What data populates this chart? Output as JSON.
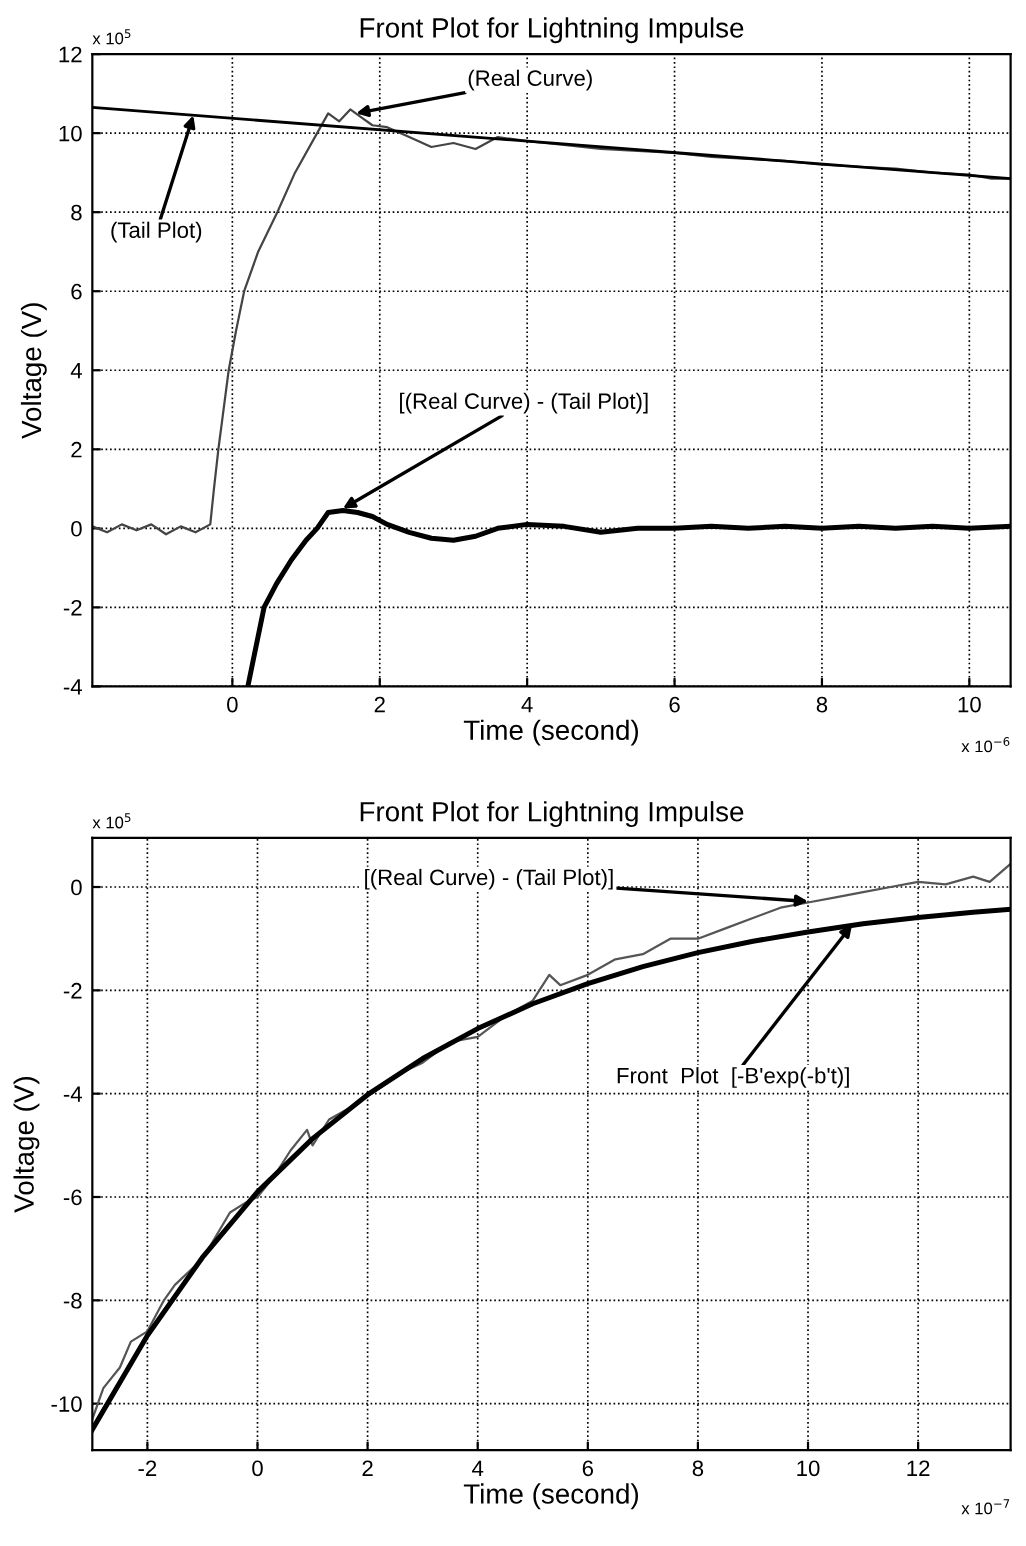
{
  "chart_data": [
    {
      "type": "line",
      "title": "Front Plot for Lightning Impulse",
      "xlabel": "Time (second)",
      "ylabel": "Voltage (V)",
      "xlim": [
        -1.9,
        10.56
      ],
      "ylim": [
        -4,
        12
      ],
      "xticks": [
        0,
        2,
        4,
        6,
        8,
        10
      ],
      "yticks": [
        -4,
        -2,
        0,
        2,
        4,
        6,
        8,
        10,
        12
      ],
      "grid": true,
      "legend": false,
      "series": [
        {
          "color": "#444444",
          "x": [
            -1.9,
            -1.7,
            -1.5,
            -1.3,
            -1.1,
            -0.9,
            -0.7,
            -0.5,
            -0.3,
            -0.25,
            -0.19,
            -0.12,
            -0.05,
            0.05,
            0.16,
            0.35,
            0.61,
            0.85,
            1.15,
            1.3,
            1.45,
            1.6,
            1.75,
            1.9,
            2.1,
            2.4,
            2.7,
            3.0,
            3.3,
            3.6,
            4.0,
            4.5,
            5.0,
            5.5,
            6.0,
            6.5,
            7.0,
            7.5,
            8.0,
            8.5,
            9.0,
            9.5,
            10.0,
            10.3,
            10.56
          ],
          "values": [
            0.05,
            -0.1,
            0.1,
            -0.05,
            0.1,
            -0.15,
            0.05,
            -0.1,
            0.1,
            1.0,
            2.0,
            3.0,
            4.0,
            5.0,
            6.0,
            7.0,
            8.0,
            9.0,
            10.0,
            10.5,
            10.3,
            10.6,
            10.4,
            10.2,
            10.15,
            9.9,
            9.65,
            9.75,
            9.6,
            9.9,
            9.8,
            9.7,
            9.6,
            9.55,
            9.5,
            9.4,
            9.35,
            9.3,
            9.2,
            9.15,
            9.1,
            9.0,
            8.95,
            8.85,
            8.85
          ]
        },
        {
          "color": "#000000",
          "x": [
            -1.9,
            10.56
          ],
          "values": [
            10.65,
            8.85
          ]
        },
        {
          "color": "#000000",
          "x": [
            0.21,
            0.43,
            0.6,
            0.8,
            1.0,
            1.15,
            1.3,
            1.5,
            1.7,
            1.9,
            2.1,
            2.4,
            2.7,
            3.0,
            3.3,
            3.6,
            4.0,
            4.5,
            5.0,
            5.5,
            6.0,
            6.5,
            7.0,
            7.5,
            8.0,
            8.5,
            9.0,
            9.5,
            10.0,
            10.56
          ],
          "values": [
            -4,
            -2,
            -1.4,
            -0.8,
            -0.3,
            0.0,
            0.4,
            0.45,
            0.4,
            0.3,
            0.1,
            -0.1,
            -0.25,
            -0.3,
            -0.2,
            0.0,
            0.1,
            0.05,
            -0.1,
            0.0,
            0.0,
            0.05,
            0.0,
            0.05,
            0.0,
            0.05,
            0.0,
            0.05,
            0.0,
            0.05
          ]
        }
      ],
      "annotations": [
        {
          "text": "(Real Curve)",
          "x": 1.68,
          "y": 10.5
        },
        {
          "text": "(Tail Plot)",
          "x": -0.53,
          "y": 10.45
        },
        {
          "text": "[(Real Curve) - (Tail Plot)]",
          "x": 1.5,
          "y": 0.5
        },
        "x 10$^{5}$",
        "x 10$^{−6}$"
      ]
    },
    {
      "type": "line",
      "title": "Front Plot for Lightning Impulse",
      "xlabel": "Time (second)",
      "ylabel": "Voltage (V)",
      "xlim": [
        -3.0,
        13.68
      ],
      "ylim": [
        -10.9,
        0.95
      ],
      "xticks": [
        -2,
        0,
        2,
        4,
        6,
        8,
        10,
        12
      ],
      "yticks": [
        -10,
        -8,
        -6,
        -4,
        -2,
        0
      ],
      "grid": true,
      "legend": false,
      "series": [
        {
          "color": "#555555",
          "x": [
            -3,
            -2.8,
            -2.5,
            -2.3,
            -2,
            -1.7,
            -1.5,
            -1,
            -0.5,
            -0.2,
            0,
            0.3,
            0.6,
            0.9,
            1.0,
            1.3,
            1.8,
            2.2,
            2.6,
            3,
            3.5,
            4,
            4.5,
            5,
            5.3,
            5.5,
            6,
            6.5,
            7,
            7.5,
            8,
            8.5,
            9,
            9.5,
            10,
            10.5,
            11,
            11.5,
            12,
            12.5,
            13,
            13.3,
            13.68
          ],
          "values": [
            -10.3,
            -9.7,
            -9.3,
            -8.8,
            -8.6,
            -8.0,
            -7.7,
            -7.2,
            -6.3,
            -6.1,
            -6.0,
            -5.6,
            -5.1,
            -4.7,
            -5.0,
            -4.5,
            -4.2,
            -3.9,
            -3.6,
            -3.4,
            -3.0,
            -2.9,
            -2.5,
            -2.2,
            -1.7,
            -1.9,
            -1.7,
            -1.4,
            -1.3,
            -1.0,
            -1.0,
            -0.8,
            -0.6,
            -0.4,
            -0.3,
            -0.2,
            -0.1,
            0.0,
            0.1,
            0.05,
            0.2,
            0.1,
            0.45
          ]
        },
        {
          "color": "#000000",
          "x": [
            -3,
            -2,
            -1,
            0,
            1,
            2,
            3,
            4,
            5,
            6,
            7,
            8,
            9,
            10,
            11,
            12,
            13,
            13.68
          ],
          "values": [
            -10.5,
            -8.68,
            -7.17,
            -5.9,
            -4.87,
            -4.02,
            -3.32,
            -2.74,
            -2.26,
            -1.87,
            -1.54,
            -1.27,
            -1.05,
            -0.87,
            -0.71,
            -0.59,
            -0.49,
            -0.43
          ]
        }
      ],
      "annotations": [
        {
          "text": "[(Real Curve) - (Tail Plot)]",
          "x": 10.0,
          "y": -0.28
        },
        {
          "text": "Front  Plot  [-B'exp(-b't)]",
          "x": 10.8,
          "y": -0.73
        },
        "x 10$^{5}$",
        "x 10$^{−7}$"
      ]
    }
  ]
}
